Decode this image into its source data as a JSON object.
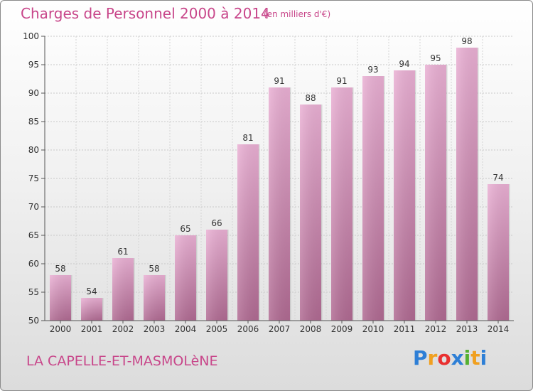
{
  "header": {
    "title": "Charges de Personnel 2000 à 2014",
    "unit": "(en milliers d'€)"
  },
  "footer": {
    "commune": "LA CAPELLE-ET-MASMOLèNE",
    "logo_letters": [
      "P",
      "r",
      "o",
      "x",
      "i",
      "t",
      "i"
    ],
    "logo_colors": [
      "#2e7fd6",
      "#f0a020",
      "#e93030",
      "#2e7fd6",
      "#55b030",
      "#f0a020",
      "#2e7fd6"
    ]
  },
  "chart_data": {
    "type": "bar",
    "categories": [
      "2000",
      "2001",
      "2002",
      "2003",
      "2004",
      "2005",
      "2006",
      "2007",
      "2008",
      "2009",
      "2010",
      "2011",
      "2012",
      "2013",
      "2014"
    ],
    "values": [
      58,
      54,
      61,
      58,
      65,
      66,
      81,
      91,
      88,
      91,
      93,
      94,
      95,
      98,
      74
    ],
    "data_labels": [
      "58",
      "54",
      "61",
      "58",
      "65",
      "66",
      "81",
      "91",
      "88",
      "91",
      "93",
      "94",
      "95",
      "98",
      "74"
    ],
    "ylim": [
      50,
      100
    ],
    "yticks": [
      50,
      55,
      60,
      65,
      70,
      75,
      80,
      85,
      90,
      95,
      100
    ],
    "ytick_labels": [
      "50",
      "55",
      "60",
      "65",
      "70",
      "75",
      "80",
      "85",
      "90",
      "95",
      "100"
    ],
    "grid": true,
    "bar_color": "#e0a0c8",
    "bar_color_dark": "#b0708f"
  }
}
